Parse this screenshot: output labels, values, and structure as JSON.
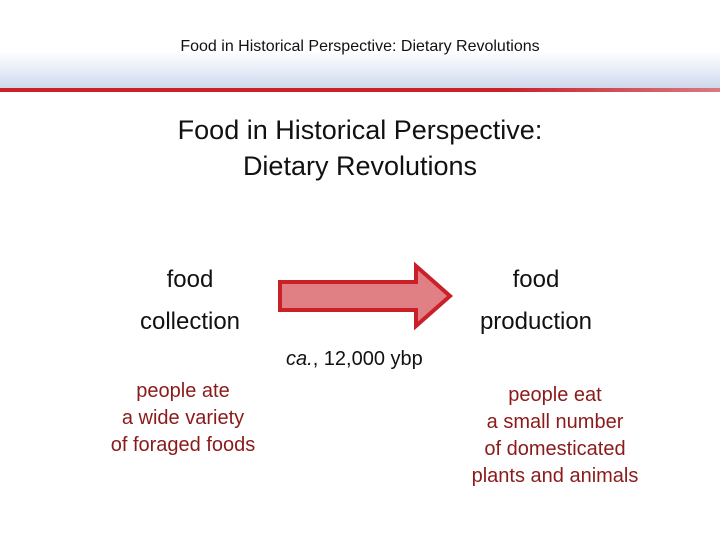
{
  "header": {
    "title": "Food in Historical Perspective: Dietary Revolutions"
  },
  "slide": {
    "title_line1": "Food in Historical Perspective:",
    "title_line2": "Dietary Revolutions",
    "left": {
      "word1": "food",
      "word2": "collection",
      "desc": [
        "people ate",
        "a wide variety",
        "of foraged foods"
      ]
    },
    "right": {
      "word1": "food",
      "word2": "production",
      "desc": [
        "people eat",
        "a small number",
        "of domesticated",
        "plants and animals"
      ]
    },
    "date_italic": "ca.",
    "date_rest": ", 12,000 ybp"
  },
  "colors": {
    "header_rule": "#c9202a",
    "arrow_fill": "#e07f84",
    "arrow_stroke": "#c9202a",
    "description_text": "#8b1a1a"
  },
  "icons": {
    "arrow": "right-arrow-icon"
  }
}
